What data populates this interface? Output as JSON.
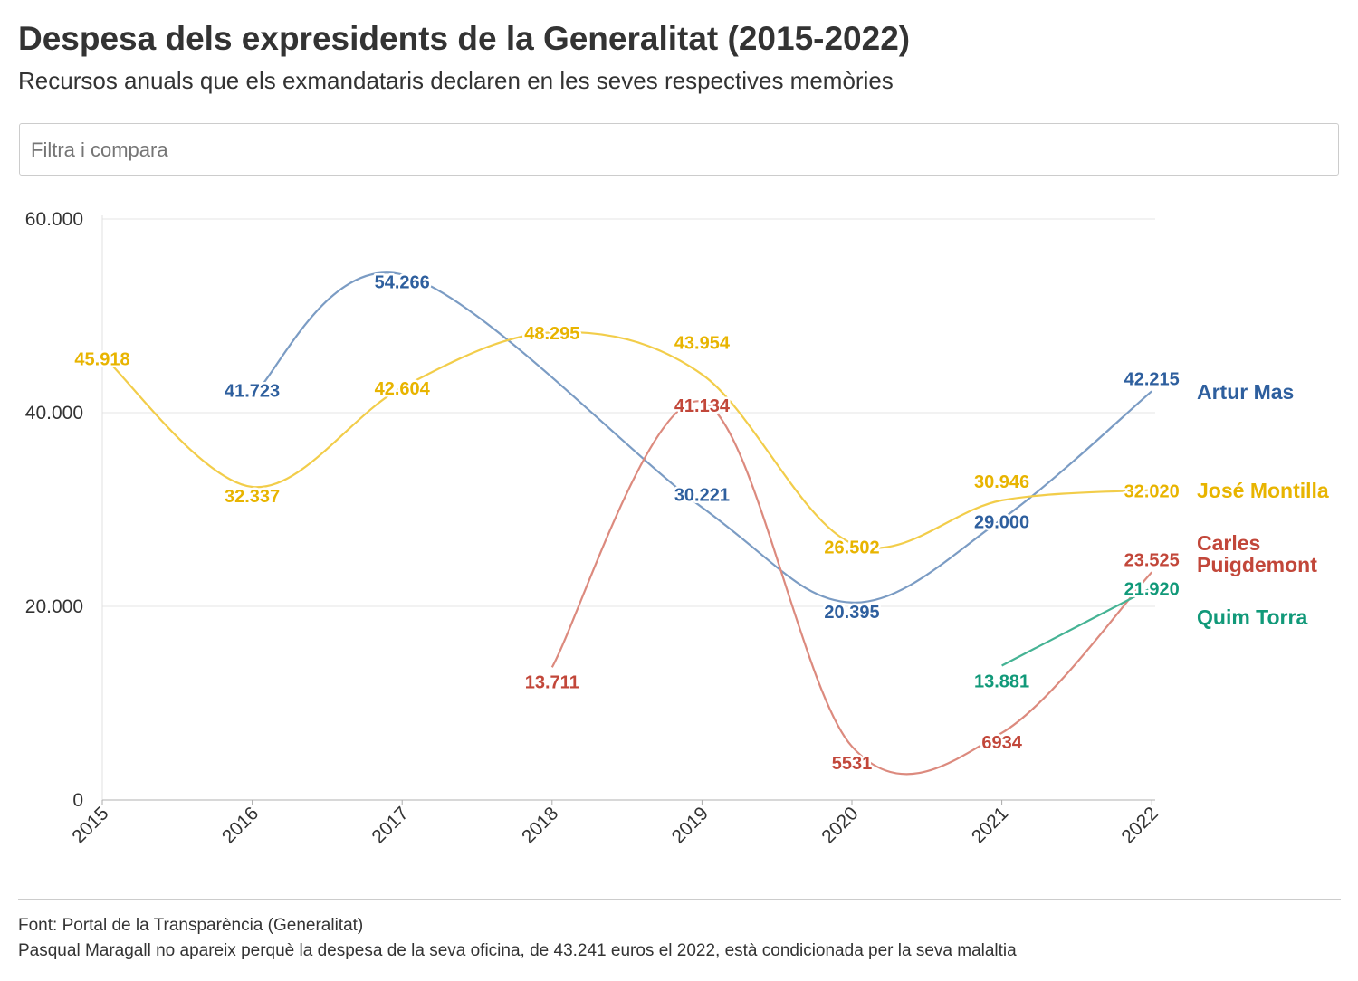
{
  "header": {
    "title": "Despesa dels expresidents de la Generalitat (2015-2022)",
    "subtitle": "Recursos anuals que els exmandataris declaren en les seves respectives memòries"
  },
  "filter": {
    "placeholder": "Filtra i compara"
  },
  "footer": {
    "source": "Font: Portal de la Transparència (Generalitat)",
    "note": "Pasqual Maragall no apareix perquè la despesa de la seva oficina, de 43.241 euros el 2022, està condicionada per la seva malaltia"
  },
  "chart_data": {
    "type": "line",
    "x": [
      2015,
      2016,
      2017,
      2018,
      2019,
      2020,
      2021,
      2022
    ],
    "ylim": [
      0,
      60000
    ],
    "yticks": [
      0,
      20000,
      40000,
      60000
    ],
    "ytick_labels": [
      "0",
      "20.000",
      "40.000",
      "60.000"
    ],
    "xtick_labels": [
      "2015",
      "2016",
      "2017",
      "2018",
      "2019",
      "2020",
      "2021",
      "2022"
    ],
    "grid": true,
    "legend": "direct labels at line ends (right)",
    "series": [
      {
        "name": "Artur Mas",
        "color": "#2e5f9e",
        "line_color": "#7b9cc4",
        "values": [
          null,
          41723,
          54266,
          null,
          30221,
          20395,
          29000,
          42215
        ],
        "labels": [
          null,
          "41.723",
          "54.266",
          null,
          "30.221",
          "20.395",
          "29.000",
          "42.215"
        ]
      },
      {
        "name": "José Montilla",
        "color": "#e8b400",
        "line_color": "#f2cd4a",
        "values": [
          45918,
          32337,
          42604,
          48295,
          43954,
          26502,
          30946,
          32020
        ],
        "labels": [
          "45.918",
          "32.337",
          "42.604",
          "48.295",
          "43.954",
          "26.502",
          "30.946",
          "32.020"
        ]
      },
      {
        "name": "Carles Puigdemont",
        "name_lines": [
          "Carles",
          "Puigdemont"
        ],
        "color": "#c2473a",
        "line_color": "#dc8a7e",
        "values": [
          null,
          null,
          null,
          13711,
          41134,
          5531,
          6934,
          23525
        ],
        "labels": [
          null,
          null,
          null,
          "13.711",
          "41.134",
          "5531",
          "6934",
          "23.525"
        ]
      },
      {
        "name": "Quim Torra",
        "color": "#119979",
        "line_color": "#45b394",
        "values": [
          null,
          null,
          null,
          null,
          null,
          null,
          13881,
          21920
        ],
        "labels": [
          null,
          null,
          null,
          null,
          null,
          null,
          "13.881",
          "21.920"
        ]
      }
    ]
  }
}
